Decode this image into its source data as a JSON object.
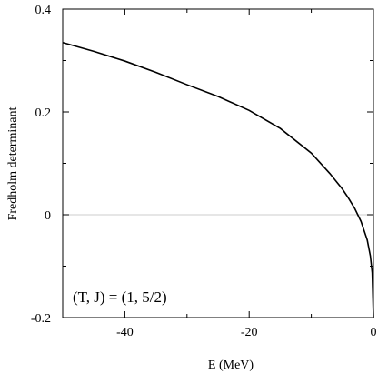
{
  "chart_data": {
    "type": "line",
    "xlabel": "E (MeV)",
    "ylabel": "Fredholm determinant",
    "xlim": [
      -50,
      0
    ],
    "ylim": [
      -0.2,
      0.4
    ],
    "x_ticks": [
      -40,
      -20,
      0
    ],
    "x_tick_labels": [
      "-40",
      "-20",
      "0"
    ],
    "y_ticks": [
      -0.2,
      0,
      0.2,
      0.4
    ],
    "y_tick_labels": [
      "-0.2",
      "0",
      "0.2",
      "0.4"
    ],
    "x_minor_ticks": [
      -50,
      -30,
      -10
    ],
    "y_minor_ticks": [
      -0.1,
      0.1,
      0.3
    ],
    "zero_line": true,
    "zero_line_color": "#cccccc",
    "line_color": "#000000",
    "annotation": "(T, J) = (1, 5/2)",
    "series": [
      {
        "x": [
          -50,
          -45,
          -40,
          -35,
          -30,
          -25,
          -20,
          -15,
          -10,
          -7,
          -5,
          -4,
          -3,
          -2,
          -1,
          -0.5,
          -0.2,
          0
        ],
        "y": [
          0.335,
          0.318,
          0.299,
          0.277,
          0.253,
          0.23,
          0.203,
          0.168,
          0.12,
          0.08,
          0.05,
          0.032,
          0.012,
          -0.013,
          -0.049,
          -0.08,
          -0.113,
          -0.2
        ]
      }
    ]
  }
}
